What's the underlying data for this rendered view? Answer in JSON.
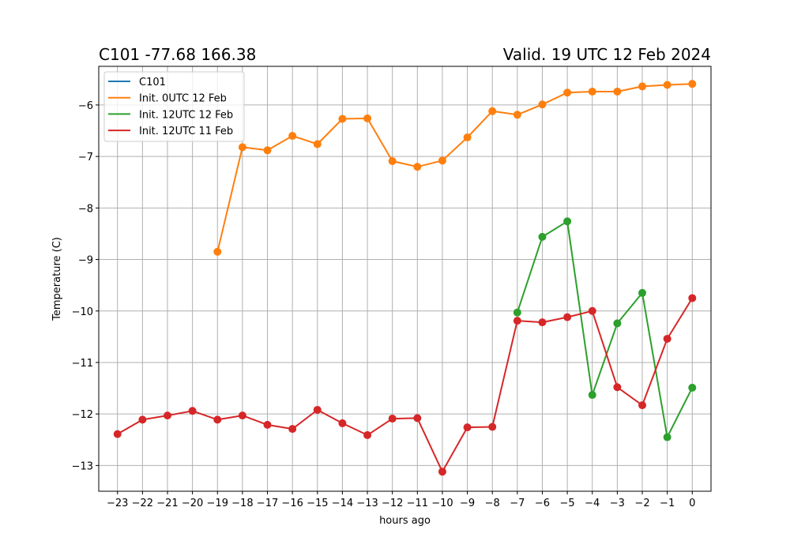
{
  "chart_data": {
    "type": "line",
    "title_left": "C101 -77.68 166.38",
    "title_right": "Valid. 19 UTC 12 Feb 2024",
    "xlabel": "hours ago",
    "ylabel": "Temperature (C)",
    "xlim": [
      -23.75,
      0.75
    ],
    "ylim": [
      -13.5,
      -5.25
    ],
    "xticks": [
      -23,
      -22,
      -21,
      -20,
      -19,
      -18,
      -17,
      -16,
      -15,
      -14,
      -13,
      -12,
      -11,
      -10,
      -9,
      -8,
      -7,
      -6,
      -5,
      -4,
      -3,
      -2,
      -1,
      0
    ],
    "xtick_labels": [
      "−23",
      "−22",
      "−21",
      "−20",
      "−19",
      "−18",
      "−17",
      "−16",
      "−15",
      "−14",
      "−13",
      "−12",
      "−11",
      "−10",
      "−9",
      "−8",
      "−7",
      "−6",
      "−5",
      "−4",
      "−3",
      "−2",
      "−1",
      "0"
    ],
    "yticks": [
      -13,
      -12,
      -11,
      -10,
      -9,
      -8,
      -7,
      -6
    ],
    "ytick_labels": [
      "−13",
      "−12",
      "−11",
      "−10",
      "−9",
      "−8",
      "−7",
      "−6"
    ],
    "grid": true,
    "legend_position": "top-left",
    "series": [
      {
        "name": "C101",
        "color": "#1f77b4",
        "x": [],
        "y": []
      },
      {
        "name": "Init. 0UTC 12 Feb",
        "color": "#ff7f0e",
        "x": [
          -19,
          -18,
          -17,
          -16,
          -15,
          -14,
          -13,
          -12,
          -11,
          -10,
          -9,
          -8,
          -7,
          -6,
          -5,
          -4,
          -3,
          -2,
          -1,
          0
        ],
        "y": [
          -8.85,
          -6.82,
          -6.88,
          -6.6,
          -6.76,
          -6.27,
          -6.26,
          -7.09,
          -7.2,
          -7.08,
          -6.63,
          -6.12,
          -6.19,
          -5.99,
          -5.76,
          -5.74,
          -5.74,
          -5.64,
          -5.61,
          -5.59
        ]
      },
      {
        "name": "Init. 12UTC 12 Feb",
        "color": "#2ca02c",
        "x": [
          -7,
          -6,
          -5,
          -4,
          -3,
          -2,
          -1,
          0
        ],
        "y": [
          -10.03,
          -8.56,
          -8.26,
          -11.63,
          -10.24,
          -9.65,
          -12.45,
          -11.49
        ]
      },
      {
        "name": "Init. 12UTC 11 Feb",
        "color": "#d62728",
        "x": [
          -23,
          -22,
          -21,
          -20,
          -19,
          -18,
          -17,
          -16,
          -15,
          -14,
          -13,
          -12,
          -11,
          -10,
          -9,
          -8,
          -7,
          -6,
          -5,
          -4,
          -3,
          -2,
          -1,
          0
        ],
        "y": [
          -12.39,
          -12.11,
          -12.03,
          -11.94,
          -12.11,
          -12.03,
          -12.21,
          -12.29,
          -11.92,
          -12.18,
          -12.41,
          -12.09,
          -12.08,
          -13.12,
          -12.26,
          -12.25,
          -10.19,
          -10.22,
          -10.12,
          -10.0,
          -11.48,
          -11.83,
          -10.54,
          -9.75
        ]
      }
    ]
  }
}
